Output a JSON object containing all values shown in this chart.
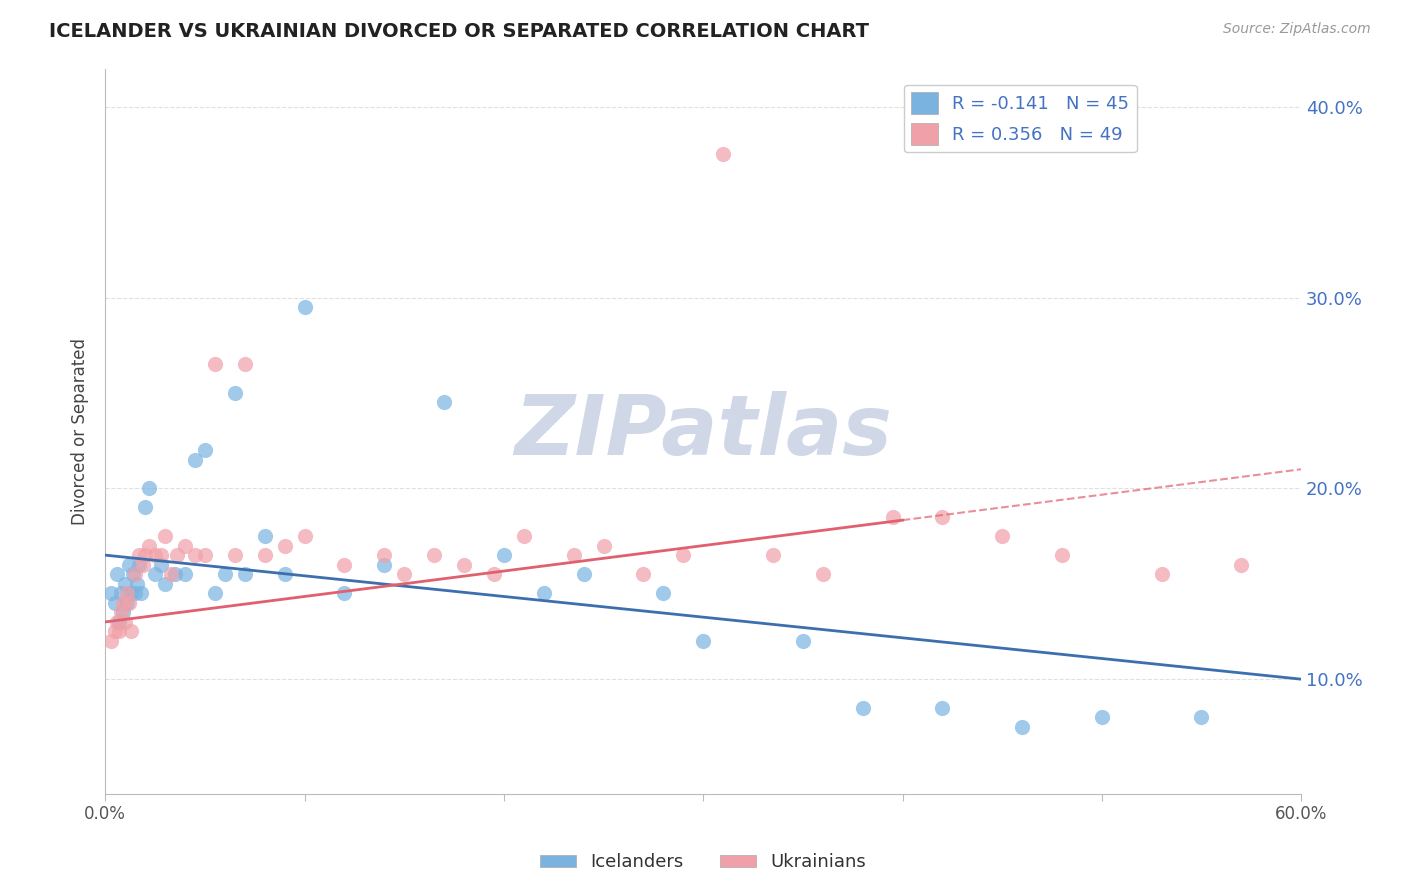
{
  "title": "ICELANDER VS UKRAINIAN DIVORCED OR SEPARATED CORRELATION CHART",
  "source_text": "Source: ZipAtlas.com",
  "ylabel": "Divorced or Separated",
  "xlim": [
    0.0,
    0.6
  ],
  "ylim": [
    0.04,
    0.42
  ],
  "xticks": [
    0.0,
    0.1,
    0.2,
    0.3,
    0.4,
    0.5,
    0.6
  ],
  "yticks": [
    0.1,
    0.2,
    0.3,
    0.4
  ],
  "ytick_labels": [
    "10.0%",
    "20.0%",
    "30.0%",
    "40.0%"
  ],
  "icelander_color": "#7ab3e0",
  "ukrainian_color": "#f0a0a8",
  "icelander_line_color": "#3d6faf",
  "ukrainian_line_color": "#e06070",
  "R_icelander": -0.141,
  "N_icelander": 45,
  "R_ukrainian": 0.356,
  "N_ukrainian": 49,
  "watermark": "ZIPatlas",
  "watermark_color": "#d0d8e8",
  "grid_color": "#e0e0e0",
  "background_color": "#ffffff",
  "icelander_points_x": [
    0.003,
    0.005,
    0.006,
    0.007,
    0.008,
    0.009,
    0.01,
    0.011,
    0.012,
    0.013,
    0.014,
    0.015,
    0.016,
    0.017,
    0.018,
    0.02,
    0.022,
    0.025,
    0.028,
    0.03,
    0.035,
    0.04,
    0.045,
    0.05,
    0.055,
    0.06,
    0.065,
    0.07,
    0.08,
    0.09,
    0.1,
    0.12,
    0.14,
    0.17,
    0.2,
    0.22,
    0.24,
    0.28,
    0.3,
    0.35,
    0.38,
    0.42,
    0.46,
    0.5,
    0.55
  ],
  "icelander_points_y": [
    0.145,
    0.14,
    0.155,
    0.13,
    0.145,
    0.135,
    0.15,
    0.14,
    0.16,
    0.145,
    0.155,
    0.145,
    0.15,
    0.16,
    0.145,
    0.19,
    0.2,
    0.155,
    0.16,
    0.15,
    0.155,
    0.155,
    0.215,
    0.22,
    0.145,
    0.155,
    0.25,
    0.155,
    0.175,
    0.155,
    0.295,
    0.145,
    0.16,
    0.245,
    0.165,
    0.145,
    0.155,
    0.145,
    0.12,
    0.12,
    0.085,
    0.085,
    0.075,
    0.08,
    0.08
  ],
  "ukrainian_points_x": [
    0.003,
    0.005,
    0.006,
    0.007,
    0.008,
    0.009,
    0.01,
    0.011,
    0.012,
    0.013,
    0.015,
    0.017,
    0.019,
    0.02,
    0.022,
    0.025,
    0.028,
    0.03,
    0.033,
    0.036,
    0.04,
    0.045,
    0.05,
    0.055,
    0.065,
    0.07,
    0.08,
    0.09,
    0.1,
    0.12,
    0.14,
    0.15,
    0.165,
    0.18,
    0.195,
    0.21,
    0.235,
    0.25,
    0.27,
    0.29,
    0.31,
    0.335,
    0.36,
    0.395,
    0.42,
    0.45,
    0.48,
    0.53,
    0.57
  ],
  "ukrainian_points_y": [
    0.12,
    0.125,
    0.13,
    0.125,
    0.135,
    0.14,
    0.13,
    0.145,
    0.14,
    0.125,
    0.155,
    0.165,
    0.16,
    0.165,
    0.17,
    0.165,
    0.165,
    0.175,
    0.155,
    0.165,
    0.17,
    0.165,
    0.165,
    0.265,
    0.165,
    0.265,
    0.165,
    0.17,
    0.175,
    0.16,
    0.165,
    0.155,
    0.165,
    0.16,
    0.155,
    0.175,
    0.165,
    0.17,
    0.155,
    0.165,
    0.375,
    0.165,
    0.155,
    0.185,
    0.185,
    0.175,
    0.165,
    0.155,
    0.16
  ],
  "trend_ice_x0": 0.0,
  "trend_ice_y0": 0.165,
  "trend_ice_x1": 0.6,
  "trend_ice_y1": 0.1,
  "trend_ukr_x0": 0.0,
  "trend_ukr_y0": 0.13,
  "trend_ukr_x1": 0.6,
  "trend_ukr_y1": 0.21,
  "trend_ukr_dash_x0": 0.4,
  "trend_ukr_dash_x1": 0.6
}
